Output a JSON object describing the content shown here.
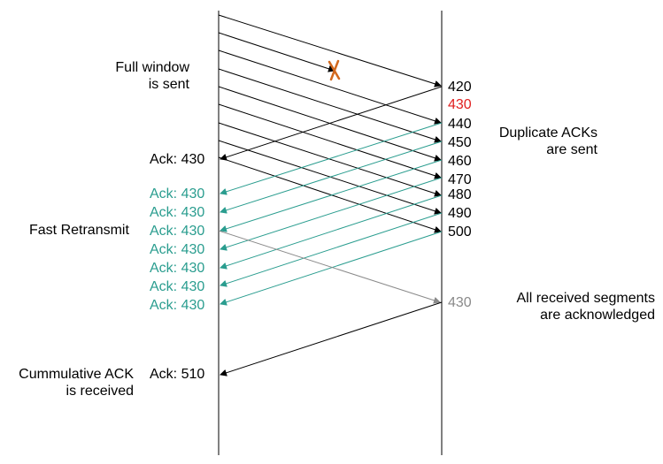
{
  "colors": {
    "black": "#000000",
    "teal": "#2a9d8f",
    "red": "#e02020",
    "gray": "#8a8a8a",
    "loss_mark": "#d2691e"
  },
  "icons": {
    "loss": "cross-mark-icon"
  },
  "left_notes": {
    "full_window_line1": "Full window",
    "full_window_line2": "is sent",
    "fast_retransmit": "Fast Retransmit",
    "cumulative_line1": "Cummulative ACK",
    "cumulative_line2": "is received"
  },
  "right_notes": {
    "dup_acks_line1": "Duplicate ACKs",
    "dup_acks_line2": "are sent",
    "all_received_line1": "All received segments",
    "all_received_line2": "are acknowledged"
  },
  "segments": [
    "420",
    "430",
    "440",
    "450",
    "460",
    "470",
    "480",
    "490",
    "500"
  ],
  "retransmitted_segment": "430",
  "first_ack": "Ack: 430",
  "duplicate_acks": [
    "Ack: 430",
    "Ack: 430",
    "Ack: 430",
    "Ack: 430",
    "Ack: 430",
    "Ack: 430",
    "Ack: 430"
  ],
  "final_ack": "Ack: 510"
}
